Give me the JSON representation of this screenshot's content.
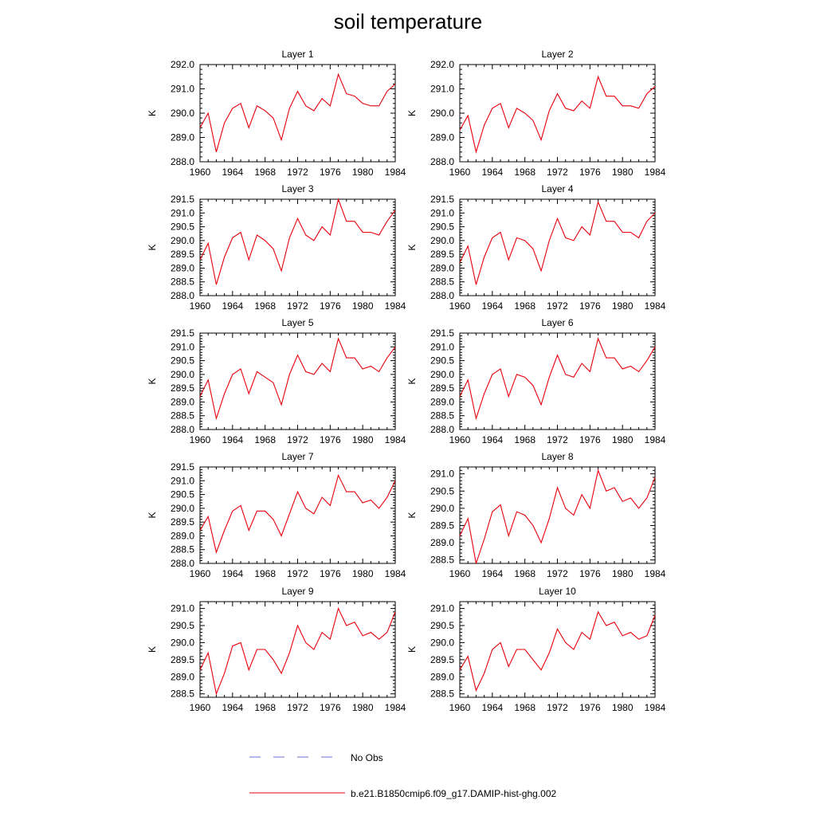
{
  "title": "soil temperature",
  "colors": {
    "model": "#e8000b",
    "obs": "#6a6fd0",
    "axis": "#000000"
  },
  "legend": {
    "obs_label": "No Obs",
    "model_label": "b.e21.B1850cmip6.f09_g17.DAMIP-hist-ghg.002"
  },
  "chart_data": [
    {
      "type": "line",
      "title": "Layer 1",
      "ylabel": "K",
      "xlabel": "",
      "xlim": [
        1960,
        1984
      ],
      "ylim": [
        288.0,
        292.0
      ],
      "xticks": [
        "1960",
        "1964",
        "1968",
        "1972",
        "1976",
        "1980",
        "1984"
      ],
      "yticks": [
        "288.0",
        "289.0",
        "290.0",
        "291.0",
        "292.0"
      ],
      "x": [
        1960,
        1961,
        1962,
        1963,
        1964,
        1965,
        1966,
        1967,
        1968,
        1969,
        1970,
        1971,
        1972,
        1973,
        1974,
        1975,
        1976,
        1977,
        1978,
        1979,
        1980,
        1981,
        1982,
        1983,
        1984
      ],
      "series": [
        {
          "values": [
            289.4,
            290.0,
            288.4,
            289.6,
            290.2,
            290.4,
            289.4,
            290.3,
            290.1,
            289.8,
            288.9,
            290.2,
            290.9,
            290.3,
            290.1,
            290.6,
            290.3,
            291.6,
            290.8,
            290.7,
            290.4,
            290.3,
            290.3,
            290.9,
            291.2
          ]
        }
      ]
    },
    {
      "type": "line",
      "title": "Layer 2",
      "ylabel": "K",
      "xlabel": "",
      "xlim": [
        1960,
        1984
      ],
      "ylim": [
        288.0,
        292.0
      ],
      "xticks": [
        "1960",
        "1964",
        "1968",
        "1972",
        "1976",
        "1980",
        "1984"
      ],
      "yticks": [
        "288.0",
        "289.0",
        "290.0",
        "291.0",
        "292.0"
      ],
      "x": [
        1960,
        1961,
        1962,
        1963,
        1964,
        1965,
        1966,
        1967,
        1968,
        1969,
        1970,
        1971,
        1972,
        1973,
        1974,
        1975,
        1976,
        1977,
        1978,
        1979,
        1980,
        1981,
        1982,
        1983,
        1984
      ],
      "series": [
        {
          "values": [
            289.3,
            289.9,
            288.4,
            289.5,
            290.2,
            290.4,
            289.4,
            290.2,
            290.0,
            289.7,
            288.9,
            290.1,
            290.8,
            290.2,
            290.1,
            290.5,
            290.2,
            291.5,
            290.7,
            290.7,
            290.3,
            290.3,
            290.2,
            290.8,
            291.1
          ]
        }
      ]
    },
    {
      "type": "line",
      "title": "Layer 3",
      "ylabel": "K",
      "xlabel": "",
      "xlim": [
        1960,
        1984
      ],
      "ylim": [
        288.0,
        291.5
      ],
      "xticks": [
        "1960",
        "1964",
        "1968",
        "1972",
        "1976",
        "1980",
        "1984"
      ],
      "yticks": [
        "288.0",
        "288.5",
        "289.0",
        "289.5",
        "290.0",
        "290.5",
        "291.0",
        "291.5"
      ],
      "x": [
        1960,
        1961,
        1962,
        1963,
        1964,
        1965,
        1966,
        1967,
        1968,
        1969,
        1970,
        1971,
        1972,
        1973,
        1974,
        1975,
        1976,
        1977,
        1978,
        1979,
        1980,
        1981,
        1982,
        1983,
        1984
      ],
      "series": [
        {
          "values": [
            289.3,
            289.9,
            288.4,
            289.4,
            290.1,
            290.3,
            289.3,
            290.2,
            290.0,
            289.7,
            288.9,
            290.1,
            290.8,
            290.2,
            290.0,
            290.5,
            290.2,
            291.5,
            290.7,
            290.7,
            290.3,
            290.3,
            290.2,
            290.7,
            291.1
          ]
        }
      ]
    },
    {
      "type": "line",
      "title": "Layer 4",
      "ylabel": "K",
      "xlabel": "",
      "xlim": [
        1960,
        1984
      ],
      "ylim": [
        288.0,
        291.5
      ],
      "xticks": [
        "1960",
        "1964",
        "1968",
        "1972",
        "1976",
        "1980",
        "1984"
      ],
      "yticks": [
        "288.0",
        "288.5",
        "289.0",
        "289.5",
        "290.0",
        "290.5",
        "291.0",
        "291.5"
      ],
      "x": [
        1960,
        1961,
        1962,
        1963,
        1964,
        1965,
        1966,
        1967,
        1968,
        1969,
        1970,
        1971,
        1972,
        1973,
        1974,
        1975,
        1976,
        1977,
        1978,
        1979,
        1980,
        1981,
        1982,
        1983,
        1984
      ],
      "series": [
        {
          "values": [
            289.2,
            289.8,
            288.4,
            289.4,
            290.1,
            290.3,
            289.3,
            290.1,
            290.0,
            289.7,
            288.9,
            290.0,
            290.8,
            290.1,
            290.0,
            290.5,
            290.2,
            291.4,
            290.7,
            290.7,
            290.3,
            290.3,
            290.1,
            290.7,
            291.0
          ]
        }
      ]
    },
    {
      "type": "line",
      "title": "Layer 5",
      "ylabel": "K",
      "xlabel": "",
      "xlim": [
        1960,
        1984
      ],
      "ylim": [
        288.0,
        291.5
      ],
      "xticks": [
        "1960",
        "1964",
        "1968",
        "1972",
        "1976",
        "1980",
        "1984"
      ],
      "yticks": [
        "288.0",
        "288.5",
        "289.0",
        "289.5",
        "290.0",
        "290.5",
        "291.0",
        "291.5"
      ],
      "x": [
        1960,
        1961,
        1962,
        1963,
        1964,
        1965,
        1966,
        1967,
        1968,
        1969,
        1970,
        1971,
        1972,
        1973,
        1974,
        1975,
        1976,
        1977,
        1978,
        1979,
        1980,
        1981,
        1982,
        1983,
        1984
      ],
      "series": [
        {
          "values": [
            289.2,
            289.8,
            288.4,
            289.3,
            290.0,
            290.2,
            289.3,
            290.1,
            289.9,
            289.7,
            288.9,
            290.0,
            290.7,
            290.1,
            290.0,
            290.4,
            290.1,
            291.3,
            290.6,
            290.6,
            290.2,
            290.3,
            290.1,
            290.6,
            291.0
          ]
        }
      ]
    },
    {
      "type": "line",
      "title": "Layer 6",
      "ylabel": "K",
      "xlabel": "",
      "xlim": [
        1960,
        1984
      ],
      "ylim": [
        288.0,
        291.5
      ],
      "xticks": [
        "1960",
        "1964",
        "1968",
        "1972",
        "1976",
        "1980",
        "1984"
      ],
      "yticks": [
        "288.0",
        "288.5",
        "289.0",
        "289.5",
        "290.0",
        "290.5",
        "291.0",
        "291.5"
      ],
      "x": [
        1960,
        1961,
        1962,
        1963,
        1964,
        1965,
        1966,
        1967,
        1968,
        1969,
        1970,
        1971,
        1972,
        1973,
        1974,
        1975,
        1976,
        1977,
        1978,
        1979,
        1980,
        1981,
        1982,
        1983,
        1984
      ],
      "series": [
        {
          "values": [
            289.2,
            289.8,
            288.4,
            289.3,
            290.0,
            290.2,
            289.2,
            290.0,
            289.9,
            289.6,
            288.9,
            289.9,
            290.7,
            290.0,
            289.9,
            290.4,
            290.1,
            291.3,
            290.6,
            290.6,
            290.2,
            290.3,
            290.1,
            290.5,
            291.0
          ]
        }
      ]
    },
    {
      "type": "line",
      "title": "Layer 7",
      "ylabel": "K",
      "xlabel": "",
      "xlim": [
        1960,
        1984
      ],
      "ylim": [
        288.0,
        291.5
      ],
      "xticks": [
        "1960",
        "1964",
        "1968",
        "1972",
        "1976",
        "1980",
        "1984"
      ],
      "yticks": [
        "288.0",
        "288.5",
        "289.0",
        "289.5",
        "290.0",
        "290.5",
        "291.0",
        "291.5"
      ],
      "x": [
        1960,
        1961,
        1962,
        1963,
        1964,
        1965,
        1966,
        1967,
        1968,
        1969,
        1970,
        1971,
        1972,
        1973,
        1974,
        1975,
        1976,
        1977,
        1978,
        1979,
        1980,
        1981,
        1982,
        1983,
        1984
      ],
      "series": [
        {
          "values": [
            289.2,
            289.7,
            288.4,
            289.2,
            289.9,
            290.1,
            289.2,
            289.9,
            289.9,
            289.6,
            289.0,
            289.8,
            290.6,
            290.0,
            289.8,
            290.4,
            290.1,
            291.2,
            290.6,
            290.6,
            290.2,
            290.3,
            290.0,
            290.4,
            291.0
          ]
        }
      ]
    },
    {
      "type": "line",
      "title": "Layer 8",
      "ylabel": "K",
      "xlabel": "",
      "xlim": [
        1960,
        1984
      ],
      "ylim": [
        288.4,
        291.2
      ],
      "xticks": [
        "1960",
        "1964",
        "1968",
        "1972",
        "1976",
        "1980",
        "1984"
      ],
      "yticks": [
        "288.5",
        "289.0",
        "289.5",
        "290.0",
        "290.5",
        "291.0"
      ],
      "x": [
        1960,
        1961,
        1962,
        1963,
        1964,
        1965,
        1966,
        1967,
        1968,
        1969,
        1970,
        1971,
        1972,
        1973,
        1974,
        1975,
        1976,
        1977,
        1978,
        1979,
        1980,
        1981,
        1982,
        1983,
        1984
      ],
      "series": [
        {
          "values": [
            289.2,
            289.7,
            288.4,
            289.1,
            289.9,
            290.1,
            289.2,
            289.9,
            289.8,
            289.5,
            289.0,
            289.7,
            290.6,
            290.0,
            289.8,
            290.4,
            290.0,
            291.1,
            290.5,
            290.6,
            290.2,
            290.3,
            290.0,
            290.3,
            290.9
          ]
        }
      ]
    },
    {
      "type": "line",
      "title": "Layer 9",
      "ylabel": "K",
      "xlabel": "",
      "xlim": [
        1960,
        1984
      ],
      "ylim": [
        288.4,
        291.2
      ],
      "xticks": [
        "1960",
        "1964",
        "1968",
        "1972",
        "1976",
        "1980",
        "1984"
      ],
      "yticks": [
        "288.5",
        "289.0",
        "289.5",
        "290.0",
        "290.5",
        "291.0"
      ],
      "x": [
        1960,
        1961,
        1962,
        1963,
        1964,
        1965,
        1966,
        1967,
        1968,
        1969,
        1970,
        1971,
        1972,
        1973,
        1974,
        1975,
        1976,
        1977,
        1978,
        1979,
        1980,
        1981,
        1982,
        1983,
        1984
      ],
      "series": [
        {
          "values": [
            289.2,
            289.7,
            288.5,
            289.1,
            289.9,
            290.0,
            289.2,
            289.8,
            289.8,
            289.5,
            289.1,
            289.7,
            290.5,
            290.0,
            289.8,
            290.3,
            290.1,
            291.0,
            290.5,
            290.6,
            290.2,
            290.3,
            290.1,
            290.3,
            290.9
          ]
        }
      ]
    },
    {
      "type": "line",
      "title": "Layer 10",
      "ylabel": "K",
      "xlabel": "",
      "xlim": [
        1960,
        1984
      ],
      "ylim": [
        288.4,
        291.2
      ],
      "xticks": [
        "1960",
        "1964",
        "1968",
        "1972",
        "1976",
        "1980",
        "1984"
      ],
      "yticks": [
        "288.5",
        "289.0",
        "289.5",
        "290.0",
        "290.5",
        "291.0"
      ],
      "x": [
        1960,
        1961,
        1962,
        1963,
        1964,
        1965,
        1966,
        1967,
        1968,
        1969,
        1970,
        1971,
        1972,
        1973,
        1974,
        1975,
        1976,
        1977,
        1978,
        1979,
        1980,
        1981,
        1982,
        1983,
        1984
      ],
      "series": [
        {
          "values": [
            289.2,
            289.6,
            288.6,
            289.1,
            289.8,
            290.0,
            289.3,
            289.8,
            289.8,
            289.5,
            289.2,
            289.7,
            290.4,
            290.0,
            289.8,
            290.3,
            290.1,
            290.9,
            290.5,
            290.6,
            290.2,
            290.3,
            290.1,
            290.2,
            290.8
          ]
        }
      ]
    }
  ]
}
